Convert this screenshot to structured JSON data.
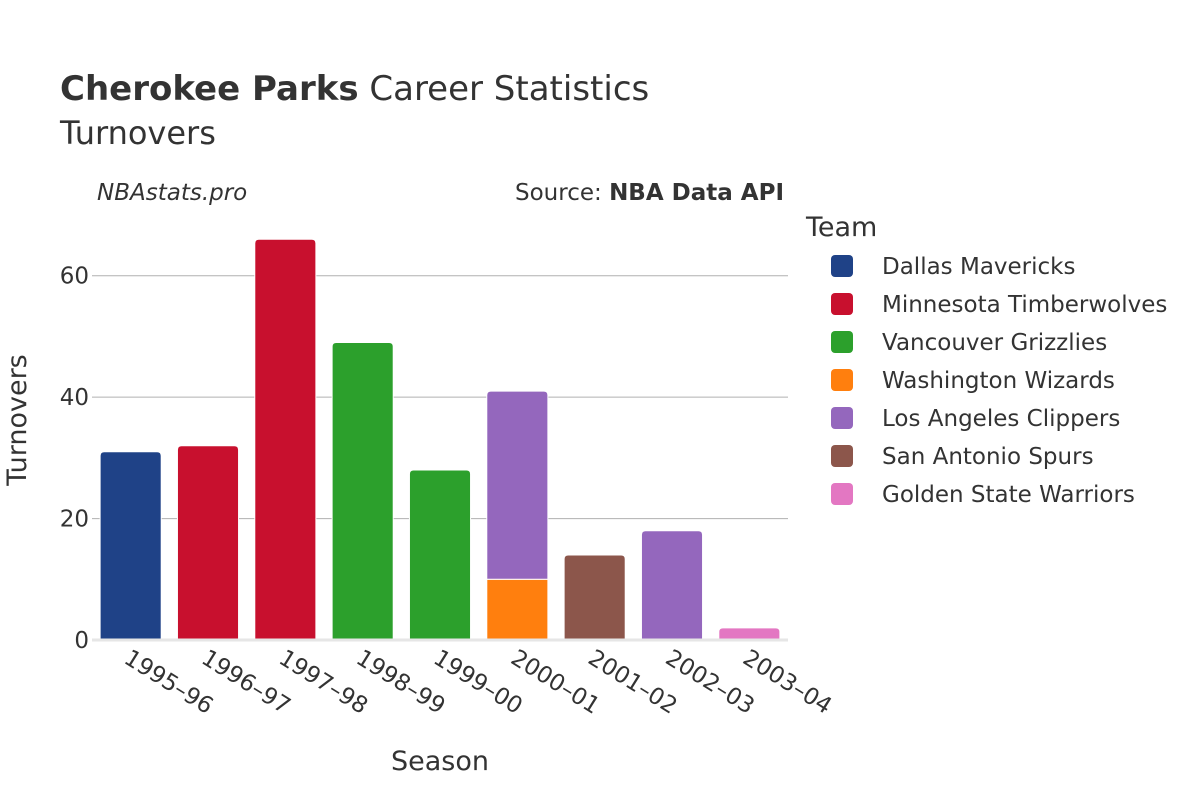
{
  "header": {
    "title_bold": "Cherokee Parks",
    "title_rest": " Career Statistics",
    "subtitle": "Turnovers"
  },
  "credits": {
    "site": "NBAstats.pro",
    "source_prefix": "Source: ",
    "source_name": "NBA Data API"
  },
  "chart_data": {
    "type": "bar",
    "stacked": true,
    "xlabel": "Season",
    "ylabel": "Turnovers",
    "ylim": [
      0,
      70
    ],
    "yticks": [
      0,
      20,
      40,
      60
    ],
    "grid": true,
    "legend_title": "Team",
    "legend_position": "right",
    "categories": [
      "1995–96",
      "1996–97",
      "1997–98",
      "1998–99",
      "1999–00",
      "2000–01",
      "2001–02",
      "2002–03",
      "2003–04"
    ],
    "series": [
      {
        "name": "Dallas Mavericks",
        "color": "#1f4287",
        "values": [
          31,
          0,
          0,
          0,
          0,
          0,
          0,
          0,
          0
        ]
      },
      {
        "name": "Minnesota Timberwolves",
        "color": "#c8102e",
        "values": [
          0,
          32,
          66,
          0,
          0,
          0,
          0,
          0,
          0
        ]
      },
      {
        "name": "Vancouver Grizzlies",
        "color": "#2ca02c",
        "values": [
          0,
          0,
          0,
          49,
          28,
          0,
          0,
          0,
          0
        ]
      },
      {
        "name": "Washington Wizards",
        "color": "#ff7f0e",
        "values": [
          0,
          0,
          0,
          0,
          0,
          10,
          0,
          0,
          0
        ]
      },
      {
        "name": "Los Angeles Clippers",
        "color": "#9467bd",
        "values": [
          0,
          0,
          0,
          0,
          0,
          31,
          0,
          18,
          0
        ]
      },
      {
        "name": "San Antonio Spurs",
        "color": "#8c564b",
        "values": [
          0,
          0,
          0,
          0,
          0,
          0,
          14,
          0,
          0
        ]
      },
      {
        "name": "Golden State Warriors",
        "color": "#e377c2",
        "values": [
          0,
          0,
          0,
          0,
          0,
          0,
          0,
          0,
          2
        ]
      }
    ]
  }
}
